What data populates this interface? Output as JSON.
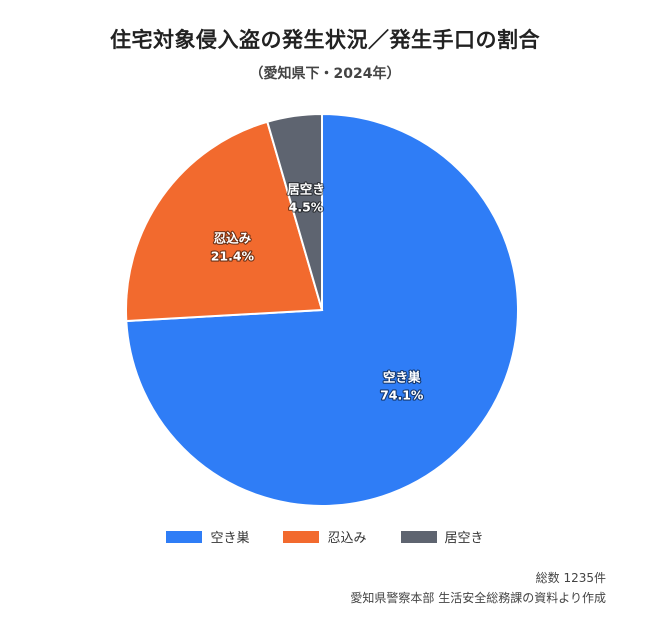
{
  "title": "住宅対象侵入盗の発生状況／発生手口の割合",
  "subtitle": "（愛知県下・2024年）",
  "chart_data": {
    "type": "pie",
    "categories": [
      "空き巣",
      "忍込み",
      "居空き"
    ],
    "values": [
      74.1,
      21.4,
      4.5
    ],
    "labels": [
      "74.1%",
      "21.4%",
      "4.5%"
    ],
    "colors": [
      "#2f7df6",
      "#f26a2e",
      "#5e6470"
    ],
    "start": "top",
    "direction": "clockwise",
    "legend": "bottom"
  },
  "footer": {
    "total": "総数 1235件",
    "source": "愛知県警察本部 生活安全総務課の資料より作成"
  }
}
